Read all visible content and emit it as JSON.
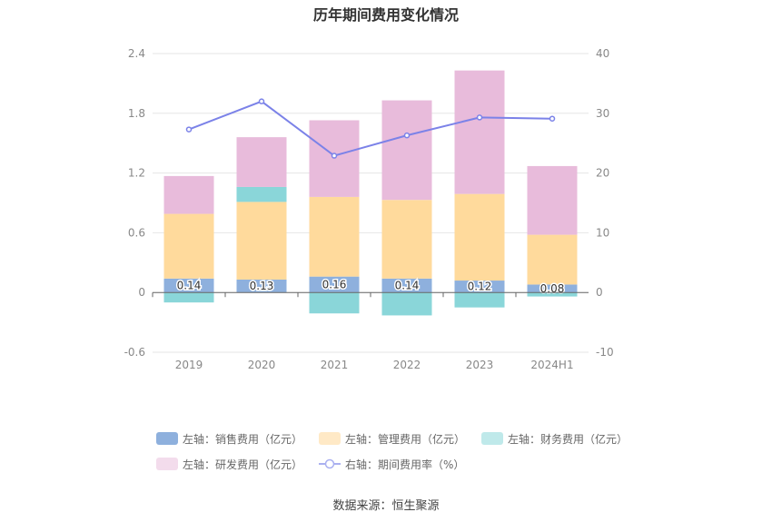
{
  "chart_data": {
    "type": "bar",
    "title": "历年期间费用变化情况",
    "categories": [
      "2019",
      "2020",
      "2021",
      "2022",
      "2023",
      "2024H1"
    ],
    "stacked": true,
    "y_left": {
      "ylim": [
        -0.6,
        2.4
      ],
      "ticks": [
        "-0.6",
        "0",
        "0.6",
        "1.2",
        "1.8",
        "2.4"
      ]
    },
    "y_right": {
      "ylim": [
        -10,
        40
      ],
      "ticks": [
        "-10",
        "0",
        "10",
        "20",
        "30",
        "40"
      ]
    },
    "series": [
      {
        "name": "左轴：销售费用（亿元）",
        "axis": "left",
        "color": "#8eb0dd",
        "values": [
          0.14,
          0.13,
          0.16,
          0.14,
          0.12,
          0.08
        ],
        "labels": [
          "0.14",
          "0.13",
          "0.16",
          "0.14",
          "0.12",
          "0.08"
        ]
      },
      {
        "name": "左轴：管理费用（亿元）",
        "axis": "left",
        "color": "#ffda9c",
        "values": [
          0.65,
          0.78,
          0.8,
          0.79,
          0.87,
          0.5
        ]
      },
      {
        "name": "左轴：财务费用（亿元）",
        "axis": "left",
        "color": "#8ad6d9",
        "values": [
          -0.1,
          0.15,
          -0.21,
          -0.23,
          -0.15,
          -0.04
        ]
      },
      {
        "name": "左轴：研发费用（亿元）",
        "axis": "left",
        "color": "#e8bbdb",
        "values": [
          0.38,
          0.5,
          0.77,
          1.0,
          1.24,
          0.69
        ]
      },
      {
        "name": "右轴：期间费用率（%）",
        "axis": "right",
        "type": "line",
        "color": "#7b82e8",
        "values": [
          27.3,
          32.0,
          22.9,
          26.3,
          29.3,
          29.1
        ]
      }
    ],
    "grid": true,
    "legend_position": "bottom",
    "source": "数据来源：恒生聚源"
  }
}
